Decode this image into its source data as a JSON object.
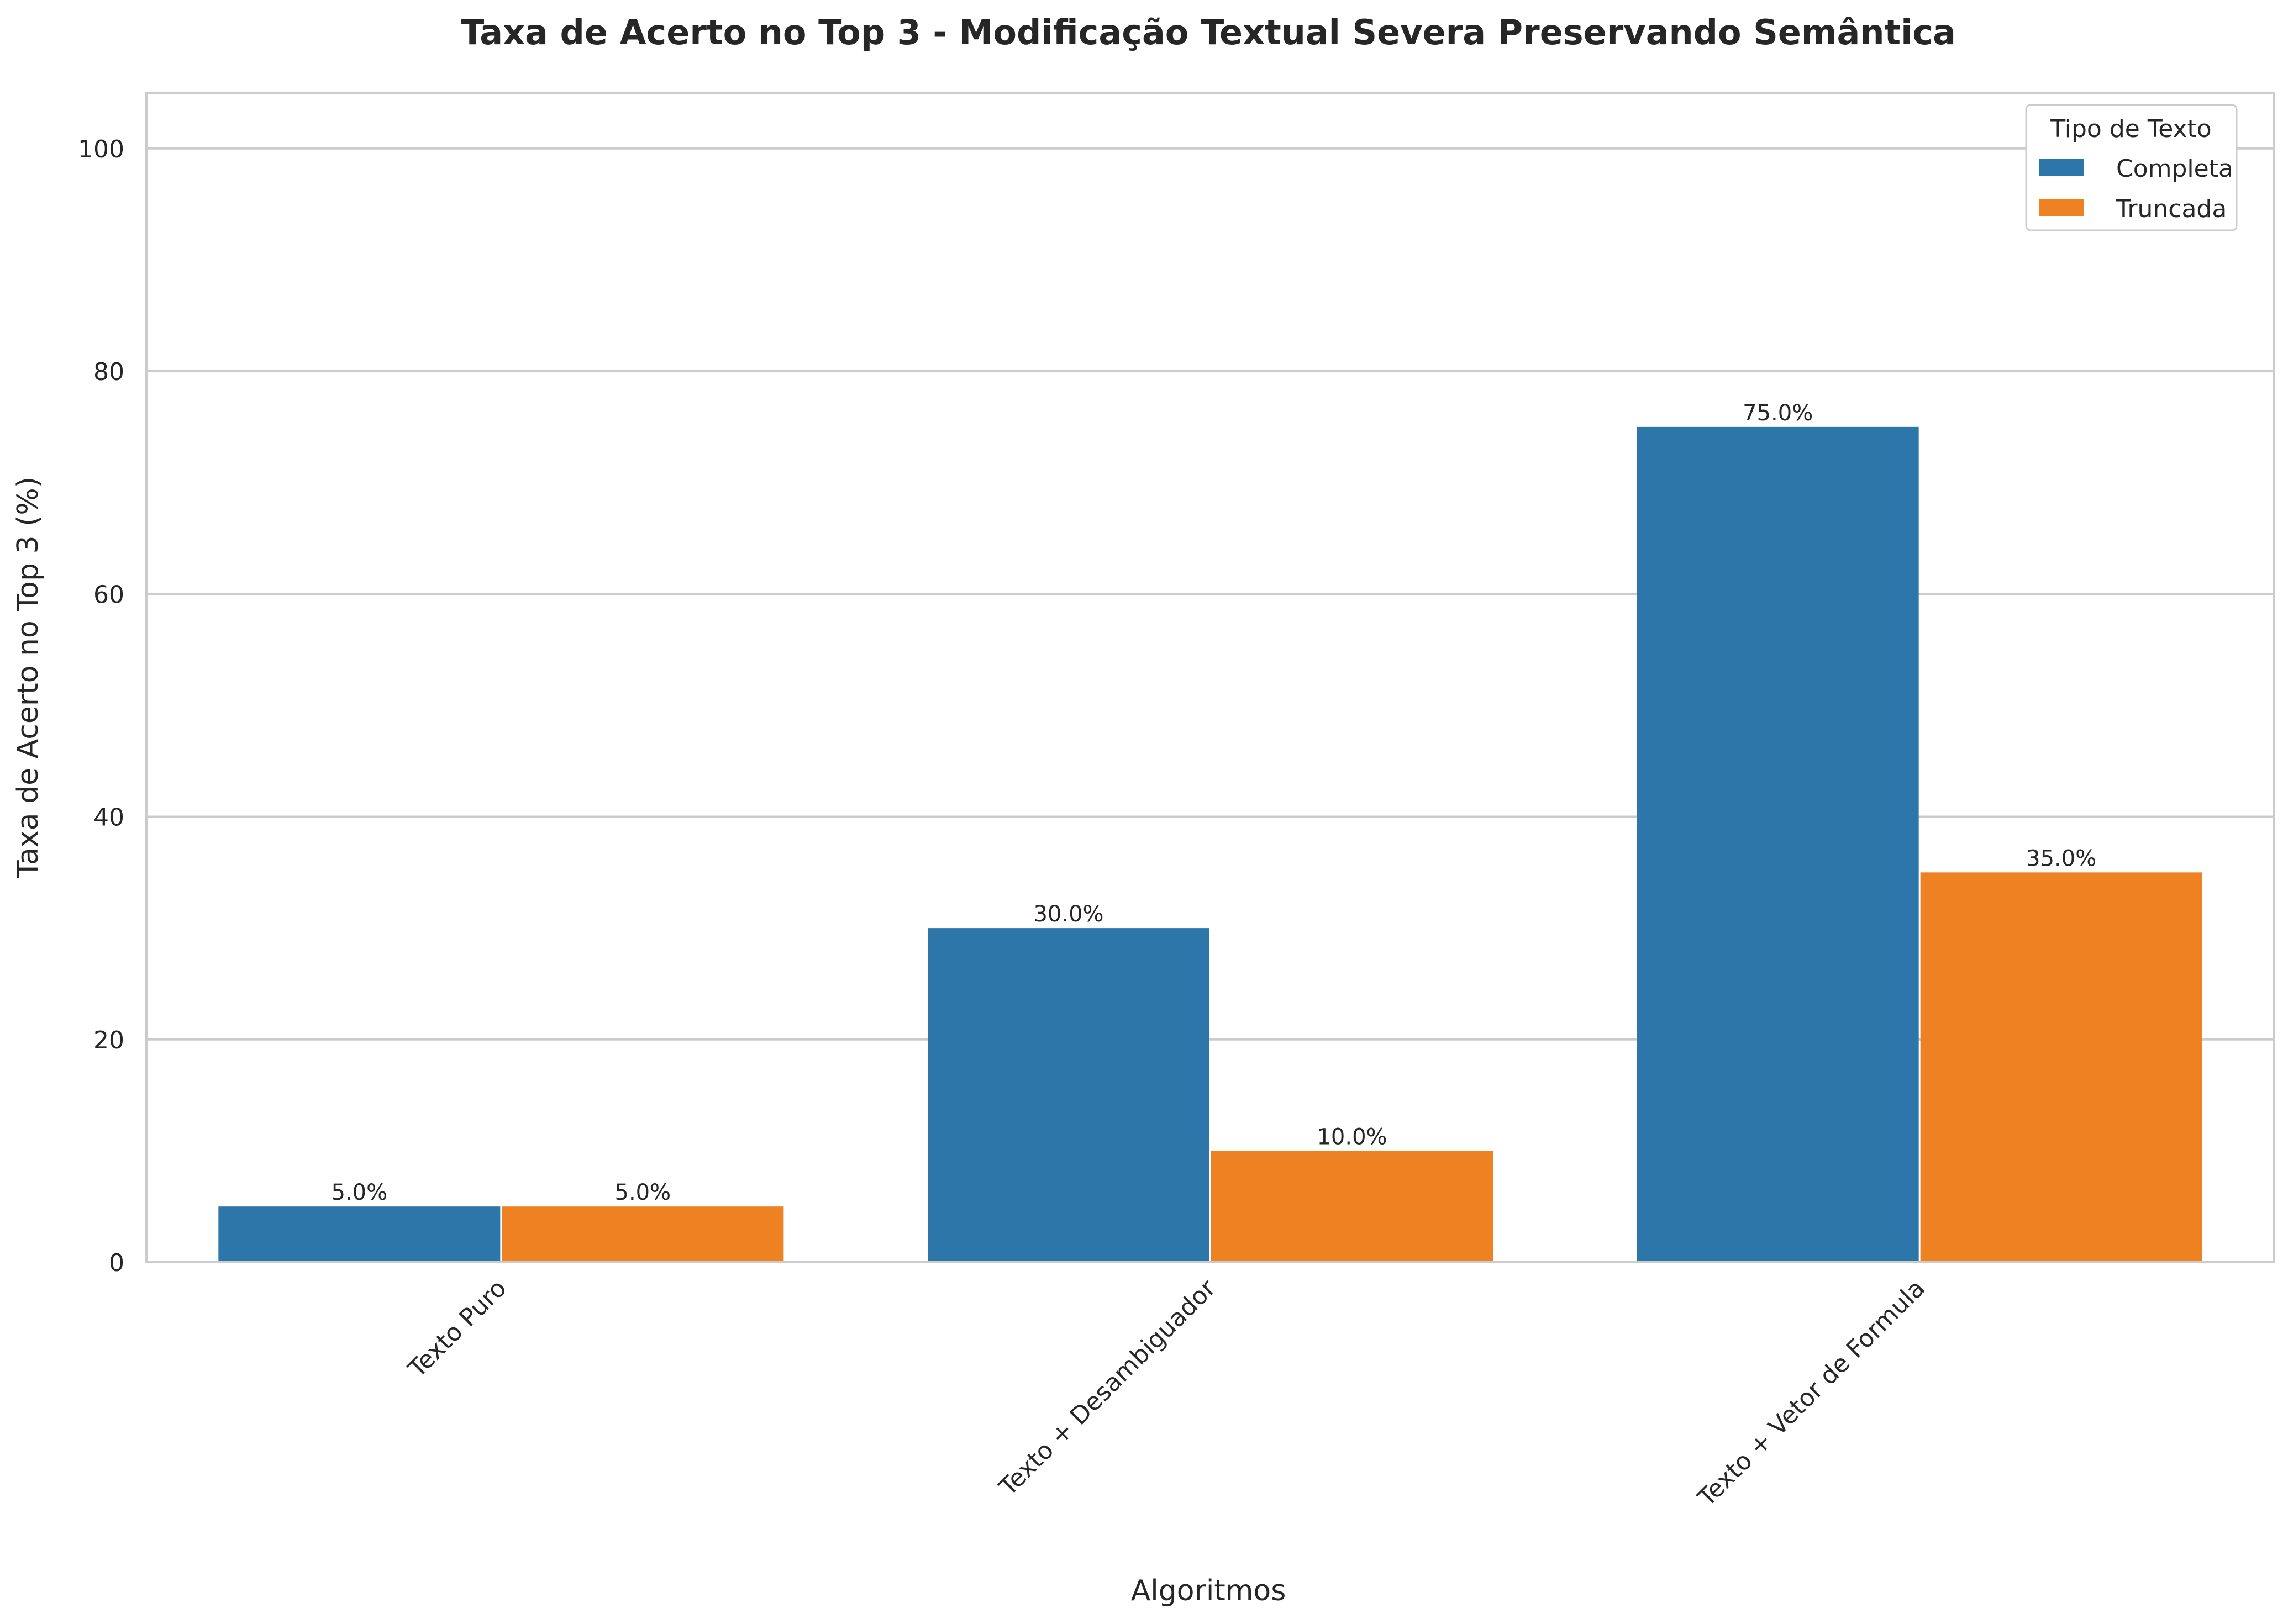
{
  "chart_data": {
    "type": "bar",
    "title": "Taxa de Acerto no Top 3 - Modificação Textual Severa Preservando Semântica",
    "xlabel": "Algoritmos",
    "ylabel": "Taxa de Acerto no Top 3 (%)",
    "ylim": [
      0,
      105
    ],
    "yticks": [
      0,
      20,
      40,
      60,
      80,
      100
    ],
    "grid": true,
    "categories": [
      "Texto Puro",
      "Texto + Desambiguador",
      "Texto + Vetor de Formula"
    ],
    "series": [
      {
        "name": "Completa",
        "color": "#2c76aa",
        "values": [
          5.0,
          30.0,
          75.0
        ],
        "labels": [
          "5.0%",
          "30.0%",
          "75.0%"
        ]
      },
      {
        "name": "Truncada",
        "color": "#ee8122",
        "values": [
          5.0,
          10.0,
          35.0
        ],
        "labels": [
          "5.0%",
          "10.0%",
          "35.0%"
        ]
      }
    ],
    "legend": {
      "title": "Tipo de Texto",
      "position": "top-right"
    }
  }
}
